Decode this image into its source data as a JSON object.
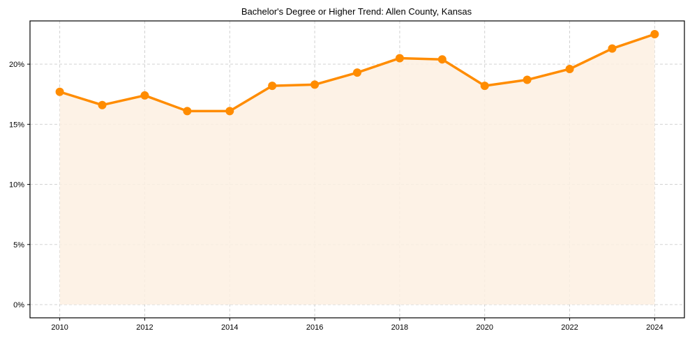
{
  "chart_data": {
    "type": "line",
    "title": "Bachelor's Degree or Higher Trend: Allen County, Kansas",
    "xlabel": "",
    "ylabel": "",
    "x": [
      2010,
      2011,
      2012,
      2013,
      2014,
      2015,
      2016,
      2017,
      2018,
      2019,
      2020,
      2021,
      2022,
      2023,
      2024
    ],
    "series": [
      {
        "name": "Bachelor's Degree or Higher",
        "values": [
          17.7,
          16.6,
          17.4,
          16.1,
          16.1,
          18.2,
          18.3,
          19.3,
          20.5,
          20.4,
          18.2,
          18.7,
          19.6,
          21.3,
          22.5
        ],
        "unit": "%",
        "color": "#ff8c00",
        "fill_color": "#fdf0e2",
        "marker": "circle",
        "area_fill": true
      }
    ],
    "xticks": [
      2010,
      2012,
      2014,
      2016,
      2018,
      2020,
      2022,
      2024
    ],
    "xtick_labels": [
      "2010",
      "2012",
      "2014",
      "2016",
      "2018",
      "2020",
      "2022",
      "2024"
    ],
    "yticks": [
      0,
      5,
      10,
      15,
      20
    ],
    "ytick_labels": [
      "0%",
      "5%",
      "10%",
      "15%",
      "20%"
    ],
    "xlim": [
      2009.3,
      2024.7
    ],
    "ylim": [
      -1.1,
      23.6
    ],
    "grid": true,
    "grid_style": "dashed",
    "legend": null
  }
}
